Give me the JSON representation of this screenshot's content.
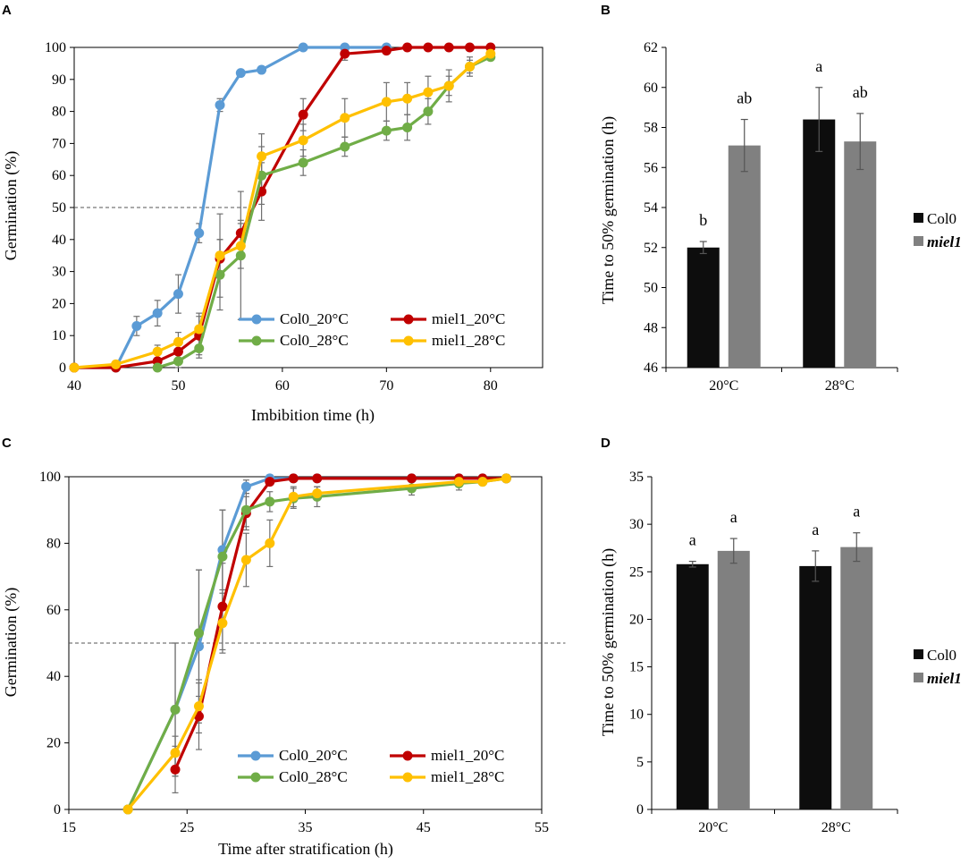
{
  "chart_data": [
    {
      "panel": "A",
      "type": "line",
      "xlabel": "Imbibition time (h)",
      "ylabel": "Germination (%)",
      "xlim": [
        40,
        85
      ],
      "ylim": [
        0,
        100
      ],
      "xticks": [
        40,
        50,
        60,
        70,
        80
      ],
      "yticks": [
        0,
        10,
        20,
        30,
        40,
        50,
        60,
        70,
        80,
        90,
        100
      ],
      "reference_line": 50,
      "legend_position": "bottom-right",
      "series": [
        {
          "name": "Col0_20°C",
          "color": "#5B9BD5",
          "x": [
            40,
            44,
            46,
            48,
            50,
            52,
            54,
            56,
            58,
            62,
            66,
            70
          ],
          "y": [
            0,
            0,
            13,
            17,
            23,
            42,
            82,
            92,
            93,
            100,
            100,
            100
          ],
          "err": [
            0,
            0,
            3,
            4,
            6,
            3,
            2,
            1,
            1,
            0,
            0,
            0
          ]
        },
        {
          "name": "miel1_20°C",
          "color": "#C00000",
          "x": [
            40,
            44,
            48,
            50,
            52,
            54,
            56,
            58,
            62,
            66,
            70,
            72,
            74,
            76,
            78,
            80
          ],
          "y": [
            0,
            0,
            2,
            5,
            10,
            34,
            42,
            55,
            79,
            98,
            99,
            100,
            100,
            100,
            100,
            100
          ],
          "err": [
            0,
            2,
            2,
            3,
            6,
            6,
            4,
            9,
            5,
            2,
            1,
            0,
            0,
            0,
            0,
            0
          ]
        },
        {
          "name": "Col0_28°C",
          "color": "#70AD47",
          "x": [
            48,
            50,
            52,
            54,
            56,
            58,
            62,
            66,
            70,
            72,
            74,
            76,
            78,
            80
          ],
          "y": [
            0,
            2,
            6,
            29,
            35,
            60,
            64,
            69,
            74,
            75,
            80,
            88,
            94,
            97
          ],
          "err": [
            0,
            2,
            3,
            11,
            20,
            9,
            4,
            3,
            3,
            4,
            4,
            3,
            2,
            1
          ]
        },
        {
          "name": "miel1_28°C",
          "color": "#FFC000",
          "x": [
            40,
            44,
            48,
            50,
            52,
            54,
            56,
            58,
            62,
            66,
            70,
            72,
            74,
            76,
            78,
            80
          ],
          "y": [
            0,
            1,
            5,
            8,
            12,
            35,
            38,
            66,
            71,
            78,
            83,
            84,
            86,
            88,
            94,
            98
          ],
          "err": [
            0,
            1,
            2,
            3,
            5,
            13,
            7,
            7,
            5,
            6,
            6,
            5,
            5,
            5,
            3,
            1
          ]
        }
      ]
    },
    {
      "panel": "B",
      "type": "bar",
      "ylabel": "Time to 50% germination (h)",
      "ylim": [
        46,
        62
      ],
      "yticks": [
        46,
        48,
        50,
        52,
        54,
        56,
        58,
        60,
        62
      ],
      "categories": [
        "20°C",
        "28°C"
      ],
      "legend_position": "right",
      "series": [
        {
          "name": "Col0",
          "color": "#0D0D0D",
          "values": [
            52.0,
            58.4
          ],
          "err": [
            0.3,
            1.6
          ],
          "labels": [
            "b",
            "a"
          ]
        },
        {
          "name": "miel1",
          "color": "#808080",
          "values": [
            57.1,
            57.3
          ],
          "err": [
            1.3,
            1.4
          ],
          "labels": [
            "ab",
            "ab"
          ]
        }
      ]
    },
    {
      "panel": "C",
      "type": "line",
      "xlabel": "Time after stratification (h)",
      "ylabel": "Germination (%)",
      "xlim": [
        15,
        55
      ],
      "ylim": [
        0,
        100
      ],
      "xticks": [
        15,
        25,
        35,
        45,
        55
      ],
      "yticks": [
        0,
        20,
        40,
        60,
        80,
        100
      ],
      "reference_line": 50,
      "legend_position": "bottom-right",
      "series": [
        {
          "name": "Col0_20°C",
          "color": "#5B9BD5",
          "x": [
            20,
            24,
            26,
            28,
            30,
            32,
            34,
            36,
            44,
            48,
            50,
            52
          ],
          "y": [
            0,
            30,
            49,
            78,
            97,
            99.5,
            99.5,
            99.5,
            99.5,
            99.5,
            99.5,
            99.5
          ],
          "err": [
            0,
            20,
            23,
            12,
            2,
            1,
            0.5,
            0.5,
            0.5,
            0.5,
            0.5,
            0.5
          ]
        },
        {
          "name": "miel1_20°C",
          "color": "#C00000",
          "x": [
            24,
            26,
            28,
            30,
            32,
            34,
            36,
            44,
            48,
            50,
            52
          ],
          "y": [
            12,
            28,
            61,
            89,
            98.5,
            99.5,
            99.5,
            99.5,
            99.5,
            99.5,
            99.5
          ],
          "err": [
            7,
            10,
            13,
            5,
            1,
            0.5,
            0.5,
            0.5,
            0.5,
            0.5,
            0.5
          ]
        },
        {
          "name": "Col0_28°C",
          "color": "#70AD47",
          "x": [
            20,
            24,
            26,
            28,
            30,
            32,
            34,
            36,
            44,
            48,
            50,
            52
          ],
          "y": [
            0,
            30,
            53,
            76,
            90,
            92.5,
            93.5,
            94,
            96.5,
            98,
            98.5,
            99.5
          ],
          "err": [
            0,
            20,
            19,
            14,
            5,
            3,
            3,
            3,
            2,
            2,
            1,
            0.5
          ]
        },
        {
          "name": "miel1_28°C",
          "color": "#FFC000",
          "x": [
            20,
            24,
            26,
            28,
            30,
            32,
            34,
            36,
            48,
            50,
            52
          ],
          "y": [
            0,
            17,
            31,
            56,
            75,
            80,
            94,
            95,
            98.5,
            98.5,
            99.5
          ],
          "err": [
            0,
            5,
            8,
            9,
            8,
            7,
            3,
            2,
            1,
            1,
            0.5
          ]
        }
      ]
    },
    {
      "panel": "D",
      "type": "bar",
      "ylabel": "Time to 50% germination (h)",
      "ylim": [
        0,
        35
      ],
      "yticks": [
        0,
        5,
        10,
        15,
        20,
        25,
        30,
        35
      ],
      "categories": [
        "20°C",
        "28°C"
      ],
      "legend_position": "right",
      "series": [
        {
          "name": "Col0",
          "color": "#0D0D0D",
          "values": [
            25.8,
            25.6
          ],
          "err": [
            0.3,
            1.6
          ],
          "labels": [
            "a",
            "a"
          ]
        },
        {
          "name": "miel1",
          "color": "#808080",
          "values": [
            27.2,
            27.6
          ],
          "err": [
            1.3,
            1.5
          ],
          "labels": [
            "a",
            "a"
          ]
        }
      ]
    }
  ]
}
